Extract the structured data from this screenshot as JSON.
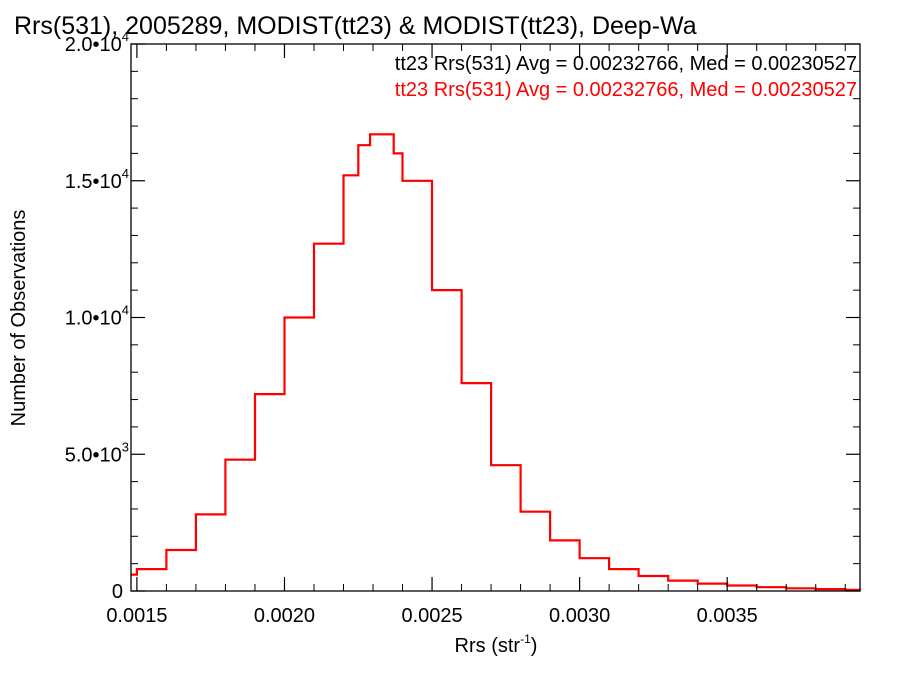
{
  "chart_data": {
    "type": "line",
    "title": "Rrs(531), 2005289, MODIST(tt23) & MODIST(tt23), Deep-Wa",
    "xlabel": "Rrs (str",
    "xlabel_sup": "-1",
    "xlabel_close": ")",
    "ylabel": "Number of Observations",
    "xlim": [
      0.00148,
      0.00395
    ],
    "ylim": [
      0,
      20000
    ],
    "x_ticks": [
      {
        "value": 0.0015,
        "label": "0.0015"
      },
      {
        "value": 0.002,
        "label": "0.0020"
      },
      {
        "value": 0.0025,
        "label": "0.0025"
      },
      {
        "value": 0.003,
        "label": "0.0030"
      },
      {
        "value": 0.0035,
        "label": "0.0035"
      }
    ],
    "y_ticks": [
      {
        "value": 0,
        "mantissa": "0",
        "exp": ""
      },
      {
        "value": 5000,
        "mantissa": "5.0•10",
        "exp": "3"
      },
      {
        "value": 10000,
        "mantissa": "1.0•10",
        "exp": "4"
      },
      {
        "value": 15000,
        "mantissa": "1.5•10",
        "exp": "4"
      },
      {
        "value": 20000,
        "mantissa": "2.0•10",
        "exp": "4"
      }
    ],
    "grid": false,
    "legend_position": "top-right",
    "series": [
      {
        "name": "tt23 Rrs(531) Avg = 0.00232766, Med = 0.00230527",
        "color": "#000000",
        "x": [
          0.00148,
          0.0015,
          0.0016,
          0.0017,
          0.0018,
          0.0019,
          0.002,
          0.0021,
          0.0022,
          0.00225,
          0.00229,
          0.00233,
          0.00237,
          0.0024,
          0.0025,
          0.0026,
          0.0027,
          0.0028,
          0.0029,
          0.003,
          0.0031,
          0.0032,
          0.0033,
          0.0034,
          0.0035,
          0.0036,
          0.0037,
          0.0038,
          0.0039,
          0.00395
        ],
        "y": [
          600,
          800,
          1500,
          2800,
          4800,
          7200,
          10000,
          12700,
          15200,
          16300,
          16700,
          16700,
          16000,
          15000,
          11000,
          7600,
          4600,
          2900,
          1850,
          1200,
          800,
          550,
          380,
          270,
          200,
          140,
          100,
          70,
          40,
          20
        ]
      },
      {
        "name": "tt23 Rrs(531) Avg = 0.00232766, Med = 0.00230527",
        "color": "#ff0000",
        "x": [
          0.00148,
          0.0015,
          0.0016,
          0.0017,
          0.0018,
          0.0019,
          0.002,
          0.0021,
          0.0022,
          0.00225,
          0.00229,
          0.00233,
          0.00237,
          0.0024,
          0.0025,
          0.0026,
          0.0027,
          0.0028,
          0.0029,
          0.003,
          0.0031,
          0.0032,
          0.0033,
          0.0034,
          0.0035,
          0.0036,
          0.0037,
          0.0038,
          0.0039,
          0.00395
        ],
        "y": [
          600,
          800,
          1500,
          2800,
          4800,
          7200,
          10000,
          12700,
          15200,
          16300,
          16700,
          16700,
          16000,
          15000,
          11000,
          7600,
          4600,
          2900,
          1850,
          1200,
          800,
          550,
          380,
          270,
          200,
          140,
          100,
          70,
          40,
          20
        ]
      }
    ]
  }
}
